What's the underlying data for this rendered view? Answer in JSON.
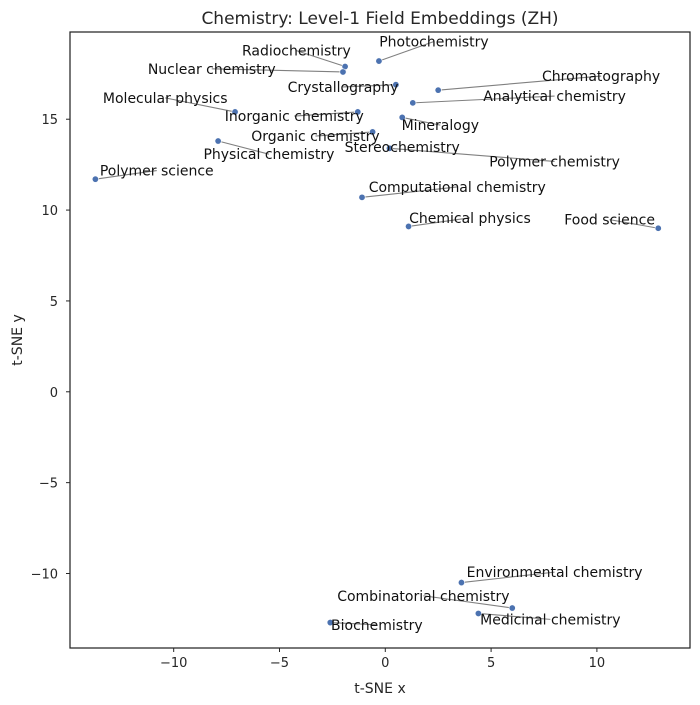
{
  "chart_data": {
    "type": "scatter",
    "title": "Chemistry: Level-1 Field Embeddings (ZH)",
    "xlabel": "t-SNE x",
    "ylabel": "t-SNE y",
    "xlim": [
      -14.9,
      14.4
    ],
    "ylim": [
      -14.1,
      19.8
    ],
    "grid": false,
    "legend": "none",
    "colors": {
      "point": "#4c72b0",
      "leader": "#808080",
      "frame": "#262626"
    },
    "x_ticks": [
      {
        "value": -10,
        "label": "−10"
      },
      {
        "value": -5,
        "label": "−5"
      },
      {
        "value": 0,
        "label": "0"
      },
      {
        "value": 5,
        "label": "5"
      },
      {
        "value": 10,
        "label": "10"
      }
    ],
    "y_ticks": [
      {
        "value": -10,
        "label": "−10"
      },
      {
        "value": -5,
        "label": "−5"
      },
      {
        "value": 0,
        "label": "0"
      },
      {
        "value": 5,
        "label": "5"
      },
      {
        "value": 10,
        "label": "10"
      },
      {
        "value": 15,
        "label": "15"
      }
    ],
    "points": [
      {
        "name": "Radiochemistry",
        "x": -1.9,
        "y": 17.9,
        "lx": -4.2,
        "ly": 18.5,
        "anchor": "middle"
      },
      {
        "name": "Photochemistry",
        "x": -0.3,
        "y": 18.2,
        "lx": 2.3,
        "ly": 19.0,
        "anchor": "middle"
      },
      {
        "name": "Nuclear chemistry",
        "x": -2.0,
        "y": 17.6,
        "lx": -8.2,
        "ly": 17.5,
        "anchor": "middle"
      },
      {
        "name": "Crystallography",
        "x": 0.5,
        "y": 16.9,
        "lx": -2.0,
        "ly": 16.5,
        "anchor": "middle"
      },
      {
        "name": "Chromatography",
        "x": 2.5,
        "y": 16.6,
        "lx": 10.2,
        "ly": 17.1,
        "anchor": "middle"
      },
      {
        "name": "Analytical chemistry",
        "x": 1.3,
        "y": 15.9,
        "lx": 8.0,
        "ly": 16.0,
        "anchor": "middle"
      },
      {
        "name": "Molecular physics",
        "x": -7.1,
        "y": 15.4,
        "lx": -10.4,
        "ly": 15.9,
        "anchor": "middle"
      },
      {
        "name": "Inorganic chemistry",
        "x": -1.3,
        "y": 15.4,
        "lx": -4.3,
        "ly": 14.9,
        "anchor": "middle"
      },
      {
        "name": "Mineralogy",
        "x": 0.8,
        "y": 15.1,
        "lx": 2.6,
        "ly": 14.4,
        "anchor": "middle"
      },
      {
        "name": "Organic chemistry",
        "x": -0.6,
        "y": 14.3,
        "lx": -3.3,
        "ly": 13.8,
        "anchor": "middle"
      },
      {
        "name": "Physical chemistry",
        "x": -7.9,
        "y": 13.8,
        "lx": -5.5,
        "ly": 12.8,
        "anchor": "middle"
      },
      {
        "name": "Stereochemistry",
        "x": 0.2,
        "y": 13.4,
        "lx": 0.8,
        "ly": 13.2,
        "anchor": "middle"
      },
      {
        "name": "Polymer chemistry",
        "x": 0.2,
        "y": 13.4,
        "lx": 8.0,
        "ly": 12.4,
        "anchor": "middle"
      },
      {
        "name": "Polymer science",
        "x": -13.7,
        "y": 11.7,
        "lx": -10.8,
        "ly": 11.9,
        "anchor": "middle"
      },
      {
        "name": "Computational chemistry",
        "x": -1.1,
        "y": 10.7,
        "lx": 3.4,
        "ly": 11.0,
        "anchor": "middle"
      },
      {
        "name": "Chemical physics",
        "x": 1.1,
        "y": 9.1,
        "lx": 4.0,
        "ly": 9.3,
        "anchor": "middle"
      },
      {
        "name": "Food science",
        "x": 12.9,
        "y": 9.0,
        "lx": 10.6,
        "ly": 9.2,
        "anchor": "middle"
      },
      {
        "name": "Environmental chemistry",
        "x": 3.6,
        "y": -10.5,
        "lx": 8.0,
        "ly": -10.2,
        "anchor": "middle"
      },
      {
        "name": "Combinatorial chemistry",
        "x": 6.0,
        "y": -11.9,
        "lx": 1.8,
        "ly": -11.5,
        "anchor": "middle"
      },
      {
        "name": "Medicinal chemistry",
        "x": 4.4,
        "y": -12.2,
        "lx": 7.8,
        "ly": -12.8,
        "anchor": "middle"
      },
      {
        "name": "Biochemistry",
        "x": -2.6,
        "y": -12.7,
        "lx": -0.4,
        "ly": -13.1,
        "anchor": "middle"
      }
    ]
  }
}
